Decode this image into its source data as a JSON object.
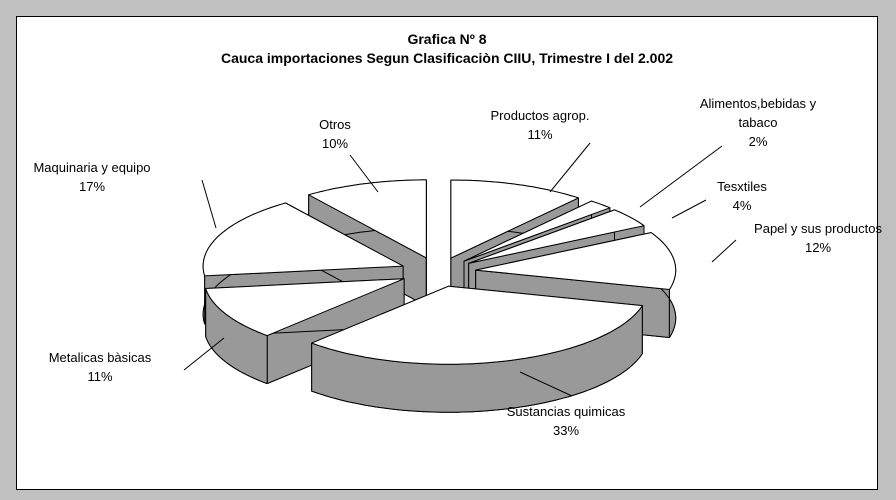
{
  "chart_data": {
    "type": "pie",
    "title": "Grafica Nº 8",
    "subtitle": "Cauca importaciones Segun Clasificaciòn CIIU, Trimestre I  del 2.002",
    "categories": [
      "Productos agrop.",
      "Alimentos,bebidas y tabaco",
      "Tesxtiles",
      "Papel y sus productos",
      "Sustancias quimicas",
      "Metalicas bàsicas",
      "Maquinaria y equipo",
      "Otros"
    ],
    "values": [
      11,
      2,
      4,
      12,
      33,
      11,
      17,
      10
    ],
    "value_labels": [
      "11%",
      "2%",
      "4%",
      "12%",
      "33%",
      "11%",
      "17%",
      "10%"
    ],
    "color": "#ffffff",
    "side_color": "#999999",
    "exploded": true,
    "three_d": true
  }
}
